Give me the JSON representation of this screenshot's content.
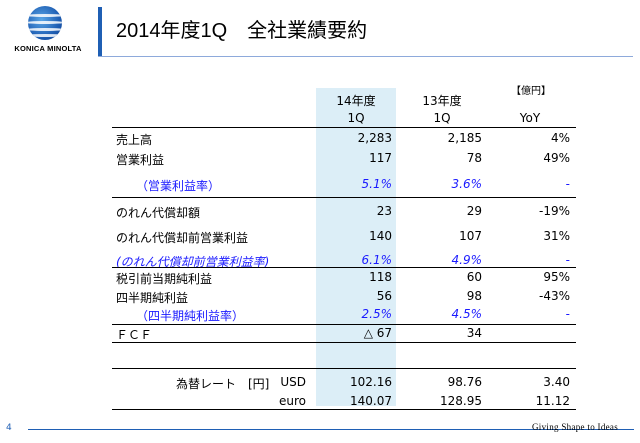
{
  "brand": "KONICA MINOLTA",
  "title": "2014年度1Q　全社業績要約",
  "unit": "【億円】",
  "columns": {
    "c1": {
      "line1": "14年度",
      "line2": "1Q"
    },
    "c2": {
      "line1": "13年度",
      "line2": "1Q"
    },
    "c3": {
      "line1": "",
      "line2": "YoY"
    }
  },
  "rows": [
    {
      "label": "売上高",
      "c1": "2,283",
      "c2": "2,185",
      "c3": "4%"
    },
    {
      "label": "営業利益",
      "c1": "117",
      "c2": "78",
      "c3": "49%"
    },
    {
      "label": "（営業利益率）",
      "c1": "5.1%",
      "c2": "3.6%",
      "c3": "-"
    },
    {
      "label": "のれん代償却額",
      "c1": "23",
      "c2": "29",
      "c3": "-19%"
    },
    {
      "label": "のれん代償却前営業利益",
      "c1": "140",
      "c2": "107",
      "c3": "31%"
    },
    {
      "label": "(のれん代償却前営業利益率)",
      "c1": "6.1%",
      "c2": "4.9%",
      "c3": "-"
    },
    {
      "label": "税引前当期純利益",
      "c1": "118",
      "c2": "60",
      "c3": "95%"
    },
    {
      "label": "四半期純利益",
      "c1": "56",
      "c2": "98",
      "c3": "-43%"
    },
    {
      "label": "（四半期純利益率）",
      "c1": "2.5%",
      "c2": "4.5%",
      "c3": "-"
    },
    {
      "label": "ＦＣＦ",
      "c1": "△ 67",
      "c2": "34",
      "c3": ""
    }
  ],
  "fx": {
    "label": "為替レート　[円]",
    "rows": [
      {
        "currency": "USD",
        "c1": "102.16",
        "c2": "98.76",
        "c3": "3.40"
      },
      {
        "currency": "euro",
        "c1": "140.07",
        "c2": "128.95",
        "c3": "11.12"
      }
    ]
  },
  "footer": {
    "page": "4",
    "tagline": "Giving Shape to Ideas"
  }
}
